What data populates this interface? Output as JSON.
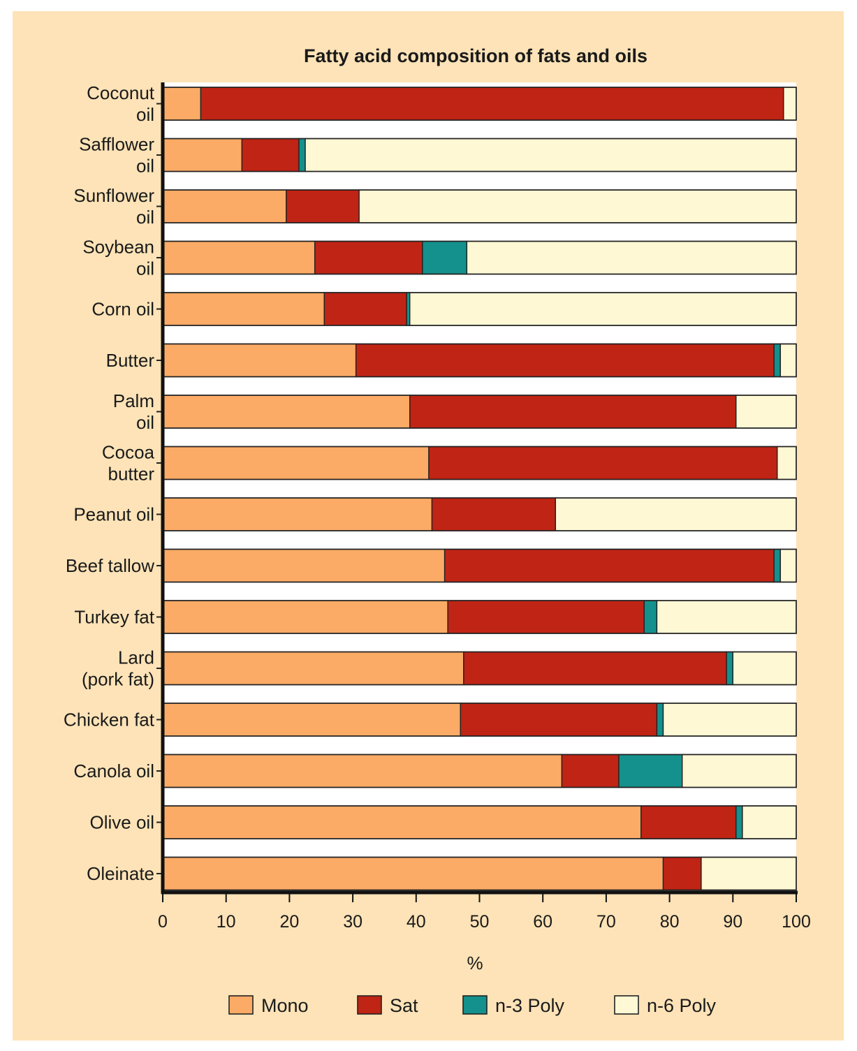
{
  "chart_data": {
    "type": "bar",
    "orientation": "horizontal",
    "stacked": true,
    "title": "Fatty acid composition of fats and oils",
    "xlabel": "%",
    "ylabel": "",
    "xlim": [
      0,
      100
    ],
    "xticks": [
      0,
      10,
      20,
      30,
      40,
      50,
      60,
      70,
      80,
      90,
      100
    ],
    "grid": false,
    "legend_position": "bottom",
    "categories": [
      [
        "Coconut",
        "oil"
      ],
      [
        "Safflower",
        "oil"
      ],
      [
        "Sunflower",
        "oil"
      ],
      [
        "Soybean",
        "oil"
      ],
      [
        "Corn oil"
      ],
      [
        "Butter"
      ],
      [
        "Palm",
        "oil"
      ],
      [
        "Cocoa",
        "butter"
      ],
      [
        "Peanut oil"
      ],
      [
        "Beef tallow"
      ],
      [
        "Turkey fat"
      ],
      [
        "Lard",
        "(pork fat)"
      ],
      [
        "Chicken fat"
      ],
      [
        "Canola oil"
      ],
      [
        "Olive oil"
      ],
      [
        "Oleinate"
      ]
    ],
    "series": [
      {
        "name": "Mono",
        "color": "#fbab66",
        "values": [
          6,
          12.5,
          19.5,
          24,
          25.5,
          30.5,
          39,
          42,
          42.5,
          44.5,
          45,
          47.5,
          47,
          63,
          75.5,
          79
        ]
      },
      {
        "name": "Sat",
        "color": "#c02415",
        "values": [
          92,
          9,
          11.5,
          17,
          13,
          66,
          51.5,
          55,
          19.5,
          52,
          31,
          41.5,
          31,
          9,
          15,
          6
        ]
      },
      {
        "name": "n-3 Poly",
        "color": "#14918c",
        "values": [
          0,
          1,
          0,
          7,
          0.5,
          1,
          0,
          0,
          0,
          1,
          2,
          1,
          1,
          10,
          1,
          0
        ]
      },
      {
        "name": "n-6 Poly",
        "color": "#fff8d4",
        "values": [
          2,
          77.5,
          69,
          52,
          61,
          2.5,
          9.5,
          3,
          38,
          2.5,
          22,
          10,
          21,
          18,
          8.5,
          15
        ]
      }
    ]
  }
}
